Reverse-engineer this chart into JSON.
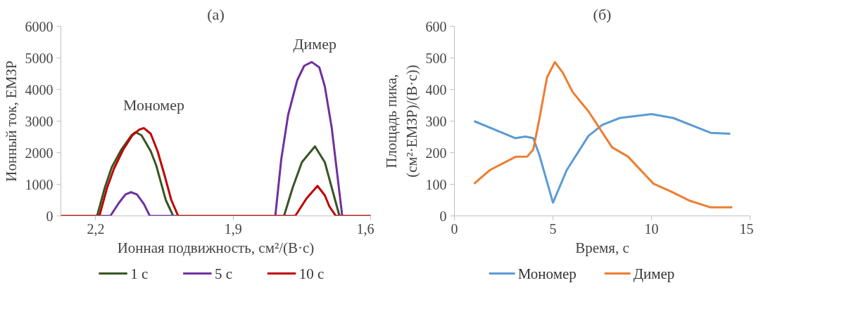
{
  "chart_data": [
    {
      "type": "line",
      "title": "(а)",
      "xlabel": "Ионная подвижность, см²/(В·с)",
      "ylabel": "Ионный ток, ЕМЗР",
      "xlim": [
        2.276,
        1.6
      ],
      "xticks": [
        {
          "value": 2.2,
          "label": "2,2"
        },
        {
          "value": 1.9,
          "label": "1,9"
        },
        {
          "value": 1.6,
          "label": "1,6"
        }
      ],
      "ylim": [
        0,
        6000
      ],
      "yticks": [
        0,
        1000,
        2000,
        3000,
        4000,
        5000,
        6000
      ],
      "grid": false,
      "legend": "bottom",
      "marker": "none",
      "line_style": "solid",
      "annotations": [
        "Мономер",
        "Димер"
      ],
      "series": [
        {
          "name": "1 с",
          "color": "#375623",
          "x": [
            2.276,
            2.197,
            2.18,
            2.165,
            2.144,
            2.122,
            2.113,
            2.1,
            2.08,
            2.068,
            2.047,
            2.031,
            1.789,
            1.77,
            1.75,
            1.7215,
            1.7,
            1.685,
            1.668,
            1.6
          ],
          "values": [
            0,
            0,
            900,
            1540,
            2100,
            2550,
            2650,
            2550,
            2050,
            1600,
            500,
            0,
            0,
            900,
            1700,
            2200,
            1700,
            900,
            0,
            0
          ]
        },
        {
          "name": "5 с",
          "color": "#7030a0",
          "x": [
            2.276,
            2.168,
            2.15,
            2.135,
            2.123,
            2.11,
            2.095,
            2.082,
            1.808,
            1.795,
            1.78,
            1.76,
            1.745,
            1.7285,
            1.712,
            1.7,
            1.685,
            1.662,
            1.6
          ],
          "values": [
            0,
            0,
            400,
            680,
            750,
            680,
            380,
            0,
            0,
            1800,
            3200,
            4300,
            4750,
            4870,
            4700,
            4100,
            2800,
            0,
            0
          ]
        },
        {
          "name": "10 с",
          "color": "#c00000",
          "x": [
            2.276,
            2.192,
            2.175,
            2.16,
            2.14,
            2.12,
            2.105,
            2.095,
            2.08,
            2.065,
            2.05,
            2.035,
            2.02,
            1.7645,
            1.74,
            1.716,
            1.7,
            1.69,
            1.676,
            1.6
          ],
          "values": [
            0,
            0,
            900,
            1500,
            2100,
            2550,
            2730,
            2780,
            2600,
            2050,
            1300,
            500,
            0,
            0,
            550,
            950,
            650,
            300,
            0,
            0
          ]
        }
      ]
    },
    {
      "type": "line",
      "title": "(б)",
      "xlabel": "Время, с",
      "ylabel": "Площадь пика,\n(см²·ЕМЗР)/(В·с))",
      "xlim": [
        0,
        15
      ],
      "xticks": [
        0,
        5,
        10,
        15
      ],
      "ylim": [
        0,
        600
      ],
      "yticks": [
        0,
        100,
        200,
        300,
        400,
        500,
        600
      ],
      "grid": false,
      "legend": "bottom",
      "marker": "none",
      "line_style": "solid",
      "series": [
        {
          "name": "Мономер",
          "color": "#5b9bd5",
          "x": [
            1,
            3.1,
            3.6,
            4,
            4.3,
            5,
            5.7,
            6.8,
            7.5,
            8.4,
            10,
            11.1,
            13,
            14
          ],
          "values": [
            300,
            246,
            251,
            246,
            195,
            42,
            145,
            253,
            288,
            310,
            322,
            310,
            263,
            260
          ]
        },
        {
          "name": "Димер",
          "color": "#ed7d31",
          "x": [
            1,
            1.8,
            3.1,
            3.7,
            4,
            4.3,
            4.7,
            5.1,
            5.5,
            6,
            6.8,
            8,
            8.8,
            10.1,
            11,
            11.9,
            13,
            14.1
          ],
          "values": [
            102,
            145,
            187,
            188,
            210,
            303,
            439,
            487,
            453,
            392,
            331,
            217,
            188,
            102,
            77,
            49,
            27,
            27
          ]
        }
      ]
    }
  ]
}
